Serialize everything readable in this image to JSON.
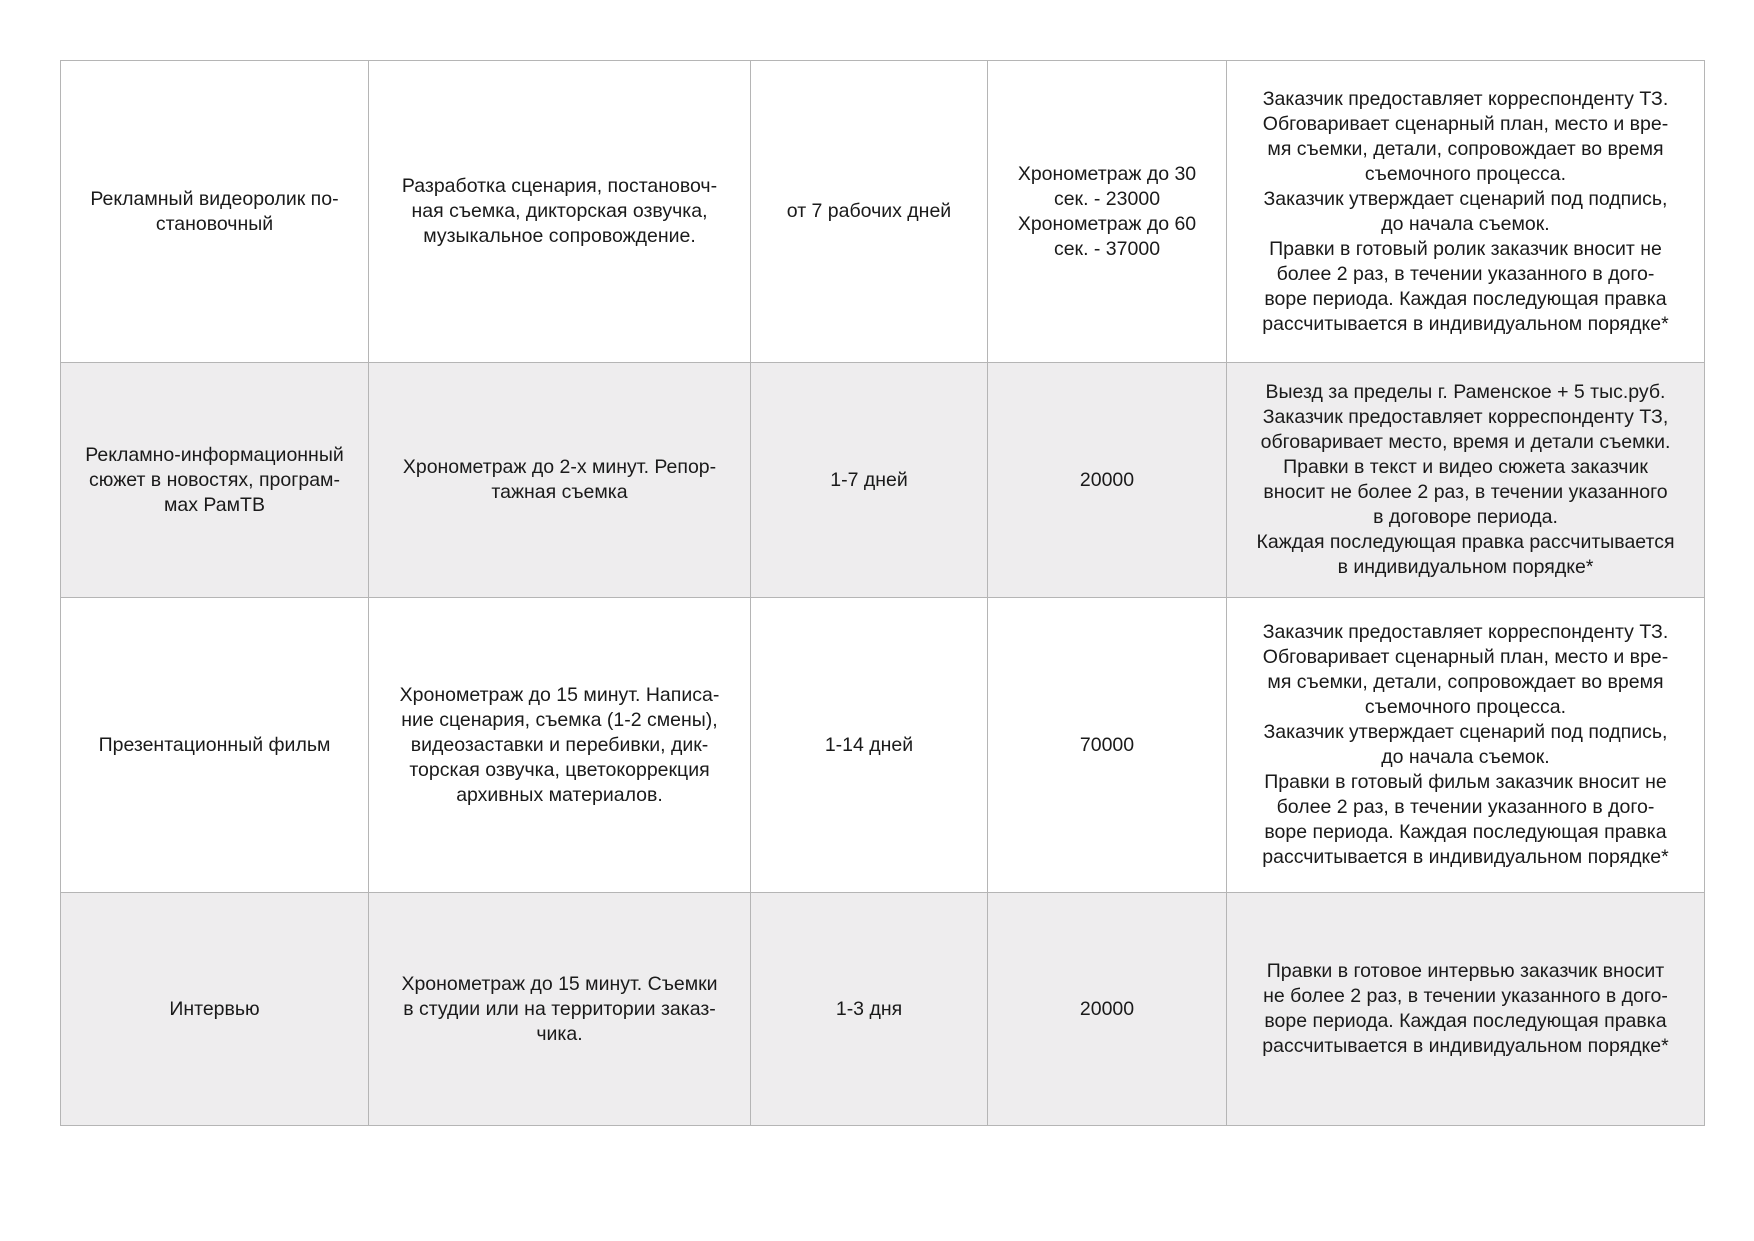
{
  "rows": [
    {
      "service": "Рекламный видеоролик по-\nстановочный",
      "description": "Разработка сценария, постановоч-\nная съемка, дикторская озвучка,\nмузыкальное сопровождение.",
      "term": "от 7 рабочих дней",
      "price": "Хронометраж до 30\nсек. - 23000\nХронометраж до 60\nсек. - 37000",
      "conditions": "Заказчик предоставляет корреспонденту ТЗ.\nОбговаривает сценарный план, место и вре-\nмя съемки, детали, сопровождает во время\nсъемочного процесса.\nЗаказчик утверждает сценарий под подпись,\nдо начала съемок.\nПравки в готовый ролик заказчик вносит не\nболее 2 раз, в течении указанного в дого-\nворе периода. Каждая последующая правка\nрассчитывается в индивидуальном порядке*"
    },
    {
      "service": "Рекламно-информационный\nсюжет в новостях, програм-\nмах РамТВ",
      "description": "Хронометраж до 2-х минут. Репор-\nтажная съемка",
      "term": "1-7 дней",
      "price": "20000",
      "conditions": "Выезд за пределы г. Раменское + 5 тыс.руб.\nЗаказчик предоставляет корреспонденту ТЗ,\nобговаривает место, время и детали съемки.\nПравки в текст и видео сюжета заказчик\nвносит не более 2 раз, в течении указанного\nв договоре периода.\nКаждая последующая правка рассчитывается\nв индивидуальном порядке*"
    },
    {
      "service": "Презентационный фильм",
      "description": "Хронометраж до 15 минут. Написа-\nние сценария, съемка (1-2 смены),\nвидеозаставки и перебивки, дик-\nторская озвучка, цветокоррекция\nархивных материалов.",
      "term": "1-14 дней",
      "price": "70000",
      "conditions": "Заказчик предоставляет корреспонденту ТЗ.\nОбговаривает сценарный план, место и вре-\nмя съемки, детали, сопровождает во время\nсъемочного процесса.\nЗаказчик утверждает сценарий под подпись,\nдо начала съемок.\nПравки в готовый фильм заказчик вносит не\nболее 2 раз, в течении указанного в дого-\nворе периода. Каждая последующая правка\nрассчитывается в индивидуальном порядке*"
    },
    {
      "service": "Интервью",
      "description": "Хронометраж до 15 минут. Съемки\nв студии или на территории заказ-\nчика.",
      "term": "1-3 дня",
      "price": "20000",
      "conditions": "Правки в готовое интервью заказчик вносит\nне более 2 раз, в течении указанного в дого-\nворе периода. Каждая последующая правка\nрассчитывается в индивидуальном порядке*"
    }
  ],
  "colors": {
    "border": "#b5b5b5",
    "alt_row": "#eeedee"
  }
}
